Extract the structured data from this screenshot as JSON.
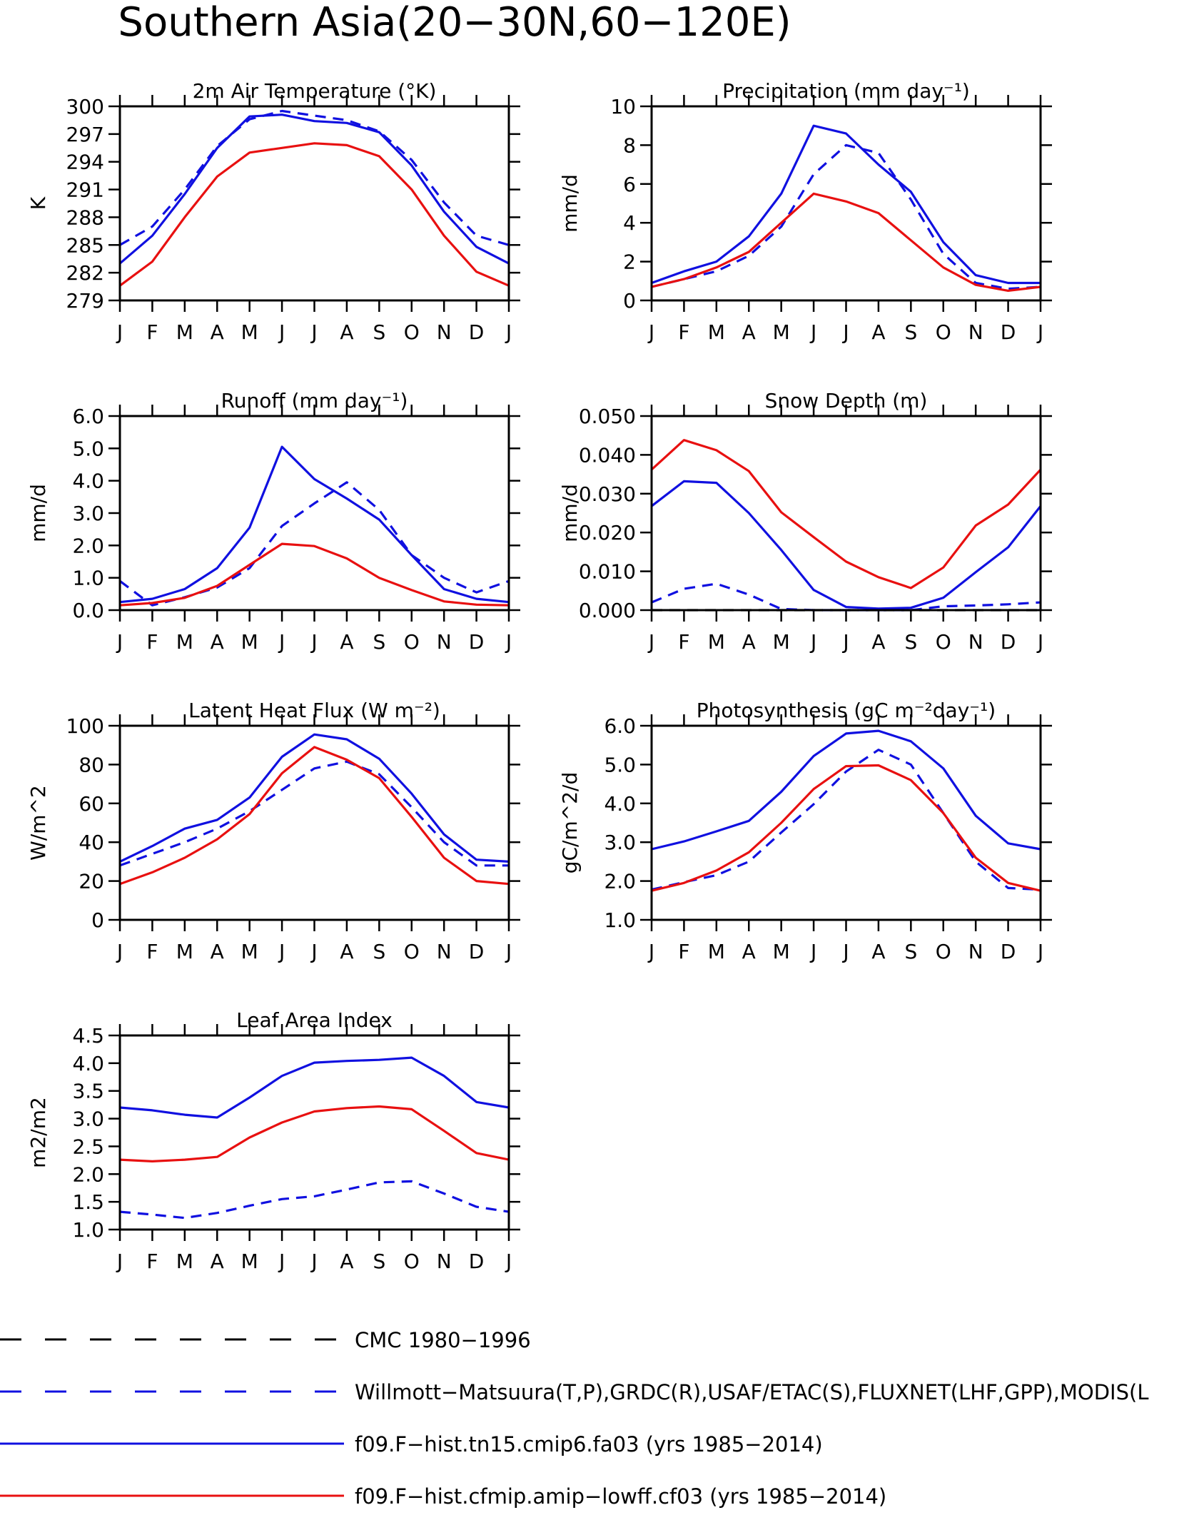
{
  "figure_title": "Southern Asia(20−30N,60−120E)",
  "months": [
    "J",
    "F",
    "M",
    "A",
    "M",
    "J",
    "J",
    "A",
    "S",
    "O",
    "N",
    "D",
    "J"
  ],
  "series_styles": [
    {
      "color": "#000000",
      "dash": true
    },
    {
      "color": "#1010e0",
      "dash": true
    },
    {
      "color": "#1010e0",
      "dash": false
    },
    {
      "color": "#e81010",
      "dash": false
    }
  ],
  "legend": [
    {
      "label": "CMC 1980−1996"
    },
    {
      "label": "Willmott−Matsuura(T,P),GRDC(R),USAF/ETAC(S),FLUXNET(LHF,GPP),MODIS(L"
    },
    {
      "label": "f09.F−hist.tn15.cmip6.fa03 (yrs 1985−2014)"
    },
    {
      "label": "f09.F−hist.cfmip.amip−lowff.cf03 (yrs 1985−2014)"
    }
  ],
  "chart_data": [
    {
      "type": "line",
      "title": "2m Air Temperature (°K)",
      "ylabel": "K",
      "ylim": [
        279,
        300
      ],
      "yticks": [
        279,
        282,
        285,
        288,
        291,
        294,
        297,
        300
      ],
      "ytick_labels": [
        "279",
        "282",
        "285",
        "288",
        "291",
        "294",
        "297",
        "300"
      ],
      "series": [
        {
          "style": 1,
          "values": [
            285.0,
            287.0,
            291.0,
            295.7,
            298.6,
            299.5,
            299.0,
            298.5,
            297.3,
            294.2,
            289.6,
            286.0,
            285.0
          ]
        },
        {
          "style": 2,
          "values": [
            283.0,
            286.0,
            290.5,
            295.5,
            298.9,
            299.1,
            298.4,
            298.2,
            297.2,
            293.6,
            288.6,
            284.8,
            283.0
          ]
        },
        {
          "style": 3,
          "values": [
            280.6,
            283.2,
            288.0,
            292.4,
            295.0,
            295.5,
            296.0,
            295.8,
            294.6,
            291.0,
            286.0,
            282.1,
            280.6
          ]
        }
      ]
    },
    {
      "type": "line",
      "title": "Precipitation (mm day⁻¹)",
      "ylabel": "mm/d",
      "ylim": [
        0,
        10
      ],
      "yticks": [
        0,
        2,
        4,
        6,
        8,
        10
      ],
      "ytick_labels": [
        "0",
        "2",
        "4",
        "6",
        "8",
        "10"
      ],
      "series": [
        {
          "style": 1,
          "values": [
            0.7,
            1.1,
            1.5,
            2.3,
            3.8,
            6.5,
            8.0,
            7.6,
            5.2,
            2.4,
            0.9,
            0.6,
            0.7
          ]
        },
        {
          "style": 2,
          "values": [
            0.9,
            1.5,
            2.0,
            3.3,
            5.5,
            9.0,
            8.6,
            7.0,
            5.6,
            3.0,
            1.3,
            0.9,
            0.9
          ]
        },
        {
          "style": 3,
          "values": [
            0.7,
            1.1,
            1.7,
            2.5,
            4.0,
            5.5,
            5.1,
            4.5,
            3.1,
            1.7,
            0.8,
            0.5,
            0.7
          ]
        }
      ]
    },
    {
      "type": "line",
      "title": "Runoff (mm day⁻¹)",
      "ylabel": "mm/d",
      "ylim": [
        0,
        6
      ],
      "yticks": [
        0,
        1,
        2,
        3,
        4,
        5,
        6
      ],
      "ytick_labels": [
        "0.0",
        "1.0",
        "2.0",
        "3.0",
        "4.0",
        "5.0",
        "6.0"
      ],
      "series": [
        {
          "style": 1,
          "values": [
            0.9,
            0.15,
            0.4,
            0.7,
            1.3,
            2.6,
            3.3,
            3.95,
            3.1,
            1.7,
            1.0,
            0.55,
            0.9
          ]
        },
        {
          "style": 2,
          "values": [
            0.25,
            0.35,
            0.65,
            1.3,
            2.55,
            5.05,
            4.05,
            3.45,
            2.8,
            1.7,
            0.65,
            0.35,
            0.25
          ]
        },
        {
          "style": 3,
          "values": [
            0.15,
            0.22,
            0.38,
            0.75,
            1.4,
            2.05,
            1.98,
            1.6,
            1.0,
            0.62,
            0.27,
            0.17,
            0.15
          ]
        }
      ]
    },
    {
      "type": "line",
      "title": "Snow Depth (m)",
      "ylabel": "mm/d",
      "ylim": [
        0,
        0.05
      ],
      "yticks": [
        0,
        0.01,
        0.02,
        0.03,
        0.04,
        0.05
      ],
      "ytick_labels": [
        "0.000",
        "0.010",
        "0.020",
        "0.030",
        "0.040",
        "0.050"
      ],
      "series": [
        {
          "style": 0,
          "values": [
            0,
            0,
            0,
            0,
            0,
            0,
            0,
            0,
            0,
            0,
            0,
            0,
            0
          ]
        },
        {
          "style": 1,
          "values": [
            0.002,
            0.0055,
            0.0068,
            0.004,
            0.0003,
            0,
            0,
            0,
            0,
            0.001,
            0.0012,
            0.0015,
            0.002
          ]
        },
        {
          "style": 2,
          "values": [
            0.0268,
            0.0332,
            0.0328,
            0.025,
            0.0155,
            0.0052,
            0.0008,
            0.0004,
            0.0006,
            0.0032,
            0.0098,
            0.0162,
            0.0268
          ]
        },
        {
          "style": 3,
          "values": [
            0.0362,
            0.0438,
            0.0412,
            0.0358,
            0.0252,
            0.0188,
            0.0125,
            0.0085,
            0.0057,
            0.011,
            0.0218,
            0.0272,
            0.0362
          ]
        }
      ]
    },
    {
      "type": "line",
      "title": "Latent Heat Flux (W m⁻²)",
      "ylabel": "W/m^2",
      "ylim": [
        0,
        100
      ],
      "yticks": [
        0,
        20,
        40,
        60,
        80,
        100
      ],
      "ytick_labels": [
        "0",
        "20",
        "40",
        "60",
        "80",
        "100"
      ],
      "series": [
        {
          "style": 1,
          "values": [
            28,
            34,
            40,
            47,
            56,
            67,
            78,
            81.5,
            75,
            58,
            40,
            28,
            28
          ]
        },
        {
          "style": 2,
          "values": [
            30,
            38,
            47,
            51.5,
            63,
            84,
            95.5,
            93,
            83,
            65,
            44,
            31,
            30
          ]
        },
        {
          "style": 3,
          "values": [
            18.5,
            24.5,
            32,
            41.5,
            54.5,
            75.5,
            89,
            82.5,
            73,
            53,
            32,
            20,
            18.5
          ]
        }
      ]
    },
    {
      "type": "line",
      "title": "Photosynthesis (gC m⁻²day⁻¹)",
      "ylabel": "gC/m^2/d",
      "ylim": [
        1,
        6
      ],
      "yticks": [
        1,
        2,
        3,
        4,
        5,
        6
      ],
      "ytick_labels": [
        "1.0",
        "2.0",
        "3.0",
        "4.0",
        "5.0",
        "6.0"
      ],
      "series": [
        {
          "style": 1,
          "values": [
            1.78,
            1.97,
            2.15,
            2.5,
            3.25,
            3.98,
            4.82,
            5.38,
            5.0,
            3.75,
            2.5,
            1.82,
            1.78
          ]
        },
        {
          "style": 2,
          "values": [
            2.82,
            3.02,
            3.28,
            3.55,
            4.3,
            5.22,
            5.8,
            5.87,
            5.6,
            4.9,
            3.68,
            2.97,
            2.82
          ]
        },
        {
          "style": 3,
          "values": [
            1.75,
            1.95,
            2.27,
            2.74,
            3.5,
            4.37,
            4.96,
            4.98,
            4.6,
            3.75,
            2.6,
            1.95,
            1.75
          ]
        }
      ]
    },
    {
      "type": "line",
      "title": "Leaf Area Index",
      "ylabel": "m2/m2",
      "ylim": [
        1,
        4.5
      ],
      "yticks": [
        1,
        1.5,
        2,
        2.5,
        3,
        3.5,
        4,
        4.5
      ],
      "ytick_labels": [
        "1.0",
        "1.5",
        "2.0",
        "2.5",
        "3.0",
        "3.5",
        "4.0",
        "4.5"
      ],
      "series": [
        {
          "style": 1,
          "values": [
            1.32,
            1.27,
            1.21,
            1.3,
            1.43,
            1.55,
            1.6,
            1.72,
            1.85,
            1.87,
            1.65,
            1.41,
            1.32
          ]
        },
        {
          "style": 2,
          "values": [
            3.2,
            3.15,
            3.07,
            3.02,
            3.38,
            3.77,
            4.01,
            4.04,
            4.06,
            4.1,
            3.77,
            3.3,
            3.2
          ]
        },
        {
          "style": 3,
          "values": [
            2.26,
            2.23,
            2.26,
            2.31,
            2.66,
            2.93,
            3.13,
            3.19,
            3.22,
            3.17,
            2.78,
            2.38,
            2.26
          ]
        }
      ]
    }
  ]
}
